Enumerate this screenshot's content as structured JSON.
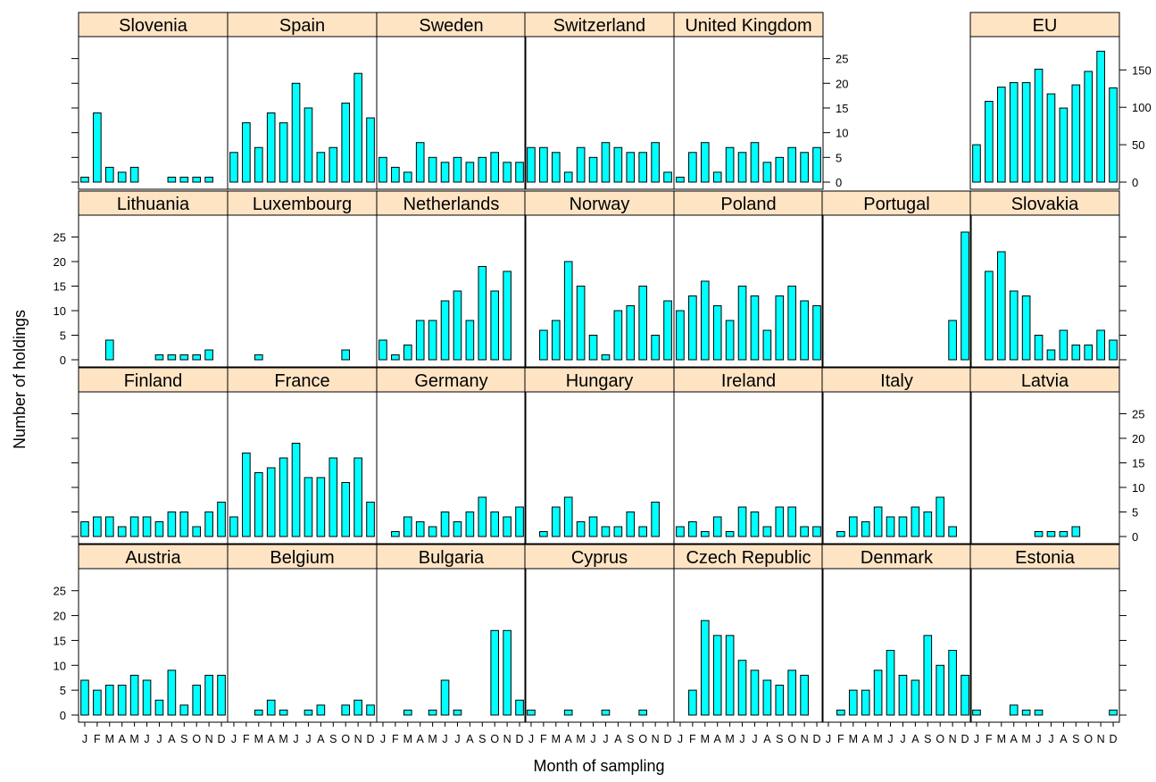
{
  "chart_data": {
    "type": "bar",
    "xlabel": "Month of sampling",
    "ylabel": "Number of holdings",
    "months": [
      "J",
      "F",
      "M",
      "A",
      "M",
      "J",
      "J",
      "A",
      "S",
      "O",
      "N",
      "D"
    ],
    "month_tick_labels": [
      "J",
      "F",
      "MA",
      "M",
      "J",
      "J",
      "A",
      "S",
      "O",
      "N",
      "D"
    ],
    "country_ylim": [
      0,
      28
    ],
    "country_yticks": [
      0,
      5,
      10,
      15,
      20,
      25
    ],
    "eu_ylim": [
      0,
      185
    ],
    "eu_yticks": [
      0,
      50,
      100,
      150
    ],
    "colors": {
      "bar": "#00ffff",
      "strip": "#ffe4c4",
      "border": "#000000"
    },
    "panels": [
      {
        "name": "Austria",
        "values": [
          7,
          5,
          6,
          6,
          8,
          7,
          3,
          9,
          2,
          6,
          8,
          8
        ]
      },
      {
        "name": "Belgium",
        "values": [
          0,
          0,
          1,
          3,
          1,
          0,
          1,
          2,
          0,
          2,
          3,
          2
        ]
      },
      {
        "name": "Bulgaria",
        "values": [
          0,
          0,
          1,
          0,
          1,
          7,
          1,
          0,
          0,
          17,
          17,
          3
        ]
      },
      {
        "name": "Cyprus",
        "values": [
          1,
          0,
          0,
          1,
          0,
          0,
          1,
          0,
          0,
          1,
          0,
          0
        ]
      },
      {
        "name": "Czech Republic",
        "values": [
          0,
          5,
          19,
          16,
          16,
          11,
          9,
          7,
          6,
          9,
          8,
          0
        ]
      },
      {
        "name": "Denmark",
        "values": [
          0,
          1,
          5,
          5,
          9,
          13,
          8,
          7,
          16,
          10,
          13,
          8
        ]
      },
      {
        "name": "Estonia",
        "values": [
          1,
          0,
          0,
          2,
          1,
          1,
          0,
          0,
          0,
          0,
          0,
          1
        ]
      },
      {
        "name": "Finland",
        "values": [
          3,
          4,
          4,
          2,
          4,
          4,
          3,
          5,
          5,
          2,
          5,
          7
        ]
      },
      {
        "name": "France",
        "values": [
          4,
          17,
          13,
          14,
          16,
          19,
          12,
          12,
          16,
          11,
          16,
          7
        ]
      },
      {
        "name": "Germany",
        "values": [
          0,
          1,
          4,
          3,
          2,
          5,
          3,
          5,
          8,
          5,
          4,
          6
        ]
      },
      {
        "name": "Hungary",
        "values": [
          0,
          1,
          6,
          8,
          3,
          4,
          2,
          2,
          5,
          2,
          7,
          0
        ]
      },
      {
        "name": "Ireland",
        "values": [
          2,
          3,
          1,
          4,
          1,
          6,
          5,
          2,
          6,
          6,
          2,
          2
        ]
      },
      {
        "name": "Italy",
        "values": [
          0,
          1,
          4,
          3,
          6,
          4,
          4,
          6,
          5,
          8,
          2,
          0
        ]
      },
      {
        "name": "Latvia",
        "values": [
          0,
          0,
          0,
          0,
          0,
          1,
          1,
          1,
          2,
          0,
          0,
          0
        ]
      },
      {
        "name": "Lithuania",
        "values": [
          0,
          0,
          4,
          0,
          0,
          0,
          1,
          1,
          1,
          1,
          2,
          0
        ]
      },
      {
        "name": "Luxembourg",
        "values": [
          0,
          0,
          1,
          0,
          0,
          0,
          0,
          0,
          0,
          2,
          0,
          0
        ]
      },
      {
        "name": "Netherlands",
        "values": [
          4,
          1,
          3,
          8,
          8,
          12,
          14,
          8,
          19,
          14,
          18,
          0
        ]
      },
      {
        "name": "Norway",
        "values": [
          0,
          6,
          8,
          20,
          15,
          5,
          1,
          10,
          11,
          15,
          5,
          12
        ]
      },
      {
        "name": "Poland",
        "values": [
          10,
          13,
          16,
          11,
          8,
          15,
          13,
          6,
          13,
          15,
          12,
          11
        ]
      },
      {
        "name": "Portugal",
        "values": [
          0,
          0,
          0,
          0,
          0,
          0,
          0,
          0,
          0,
          0,
          8,
          26
        ]
      },
      {
        "name": "Slovakia",
        "values": [
          0,
          18,
          22,
          14,
          13,
          5,
          2,
          6,
          3,
          3,
          6,
          4
        ]
      },
      {
        "name": "Slovenia",
        "values": [
          1,
          14,
          3,
          2,
          3,
          0,
          0,
          1,
          1,
          1,
          1,
          0
        ]
      },
      {
        "name": "Spain",
        "values": [
          6,
          12,
          7,
          14,
          12,
          20,
          15,
          6,
          7,
          16,
          22,
          13
        ]
      },
      {
        "name": "Sweden",
        "values": [
          5,
          3,
          2,
          8,
          5,
          4,
          5,
          4,
          5,
          6,
          4,
          4
        ]
      },
      {
        "name": "Switzerland",
        "values": [
          7,
          7,
          6,
          2,
          7,
          5,
          8,
          7,
          6,
          6,
          8,
          2
        ]
      },
      {
        "name": "United Kingdom",
        "values": [
          1,
          6,
          8,
          2,
          7,
          6,
          8,
          4,
          5,
          7,
          6,
          7
        ]
      },
      {
        "name": "EU",
        "values": [
          50,
          108,
          127,
          133,
          133,
          151,
          118,
          99,
          130,
          148,
          175,
          126
        ]
      }
    ]
  }
}
